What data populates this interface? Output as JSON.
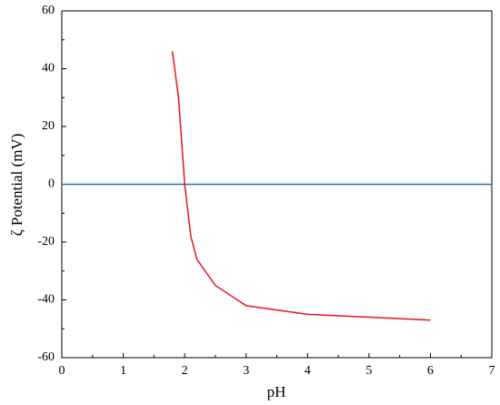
{
  "chart_data": {
    "type": "line",
    "x_label": "pH",
    "y_label": "ζ Potential (mV)",
    "xlim": [
      0,
      7
    ],
    "xticks": [
      0,
      1,
      2,
      3,
      4,
      5,
      6,
      7
    ],
    "ylim": [
      -60,
      60
    ],
    "yticks": [
      -60,
      -40,
      -20,
      0,
      20,
      40,
      60
    ],
    "reference_line": {
      "y": 0,
      "color": "#1f77b4"
    },
    "series": [
      {
        "color": "#e8141b",
        "x": [
          1.8,
          1.9,
          2.0,
          2.1,
          2.2,
          2.5,
          3.0,
          4.0,
          5.0,
          6.0
        ],
        "values": [
          46,
          30,
          0,
          -18,
          -26,
          -35,
          -42,
          -45,
          -46,
          -47
        ]
      }
    ]
  }
}
